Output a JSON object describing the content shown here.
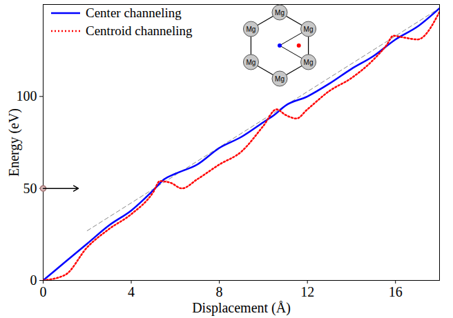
{
  "chart_data": {
    "type": "line",
    "x_label": "Displacement (Å)",
    "y_label": "Energy (eV)",
    "xlim": [
      0,
      18
    ],
    "ylim": [
      0,
      150
    ],
    "xticks": [
      0,
      4,
      8,
      12,
      16
    ],
    "yticks": [
      0,
      50,
      100
    ],
    "legend": "upper left",
    "series": [
      {
        "name": "Center channeling",
        "color": "#0000ff",
        "line_style": "solid",
        "x": [
          0,
          1,
          2,
          3,
          4,
          5,
          5.5,
          6,
          7,
          8,
          9,
          10,
          10.5,
          11,
          12,
          13,
          14,
          15,
          16,
          17,
          18
        ],
        "values": [
          0,
          10,
          20,
          30,
          38,
          49,
          55,
          58,
          63,
          72,
          78,
          86,
          90,
          95,
          100,
          107,
          115,
          122,
          131,
          138,
          148
        ]
      },
      {
        "name": "Centroid channeling",
        "color": "#ff0000",
        "line_style": "dotted",
        "x": [
          0,
          1,
          2,
          3,
          4,
          5,
          5.3,
          5.8,
          6.3,
          7,
          8,
          9,
          10,
          10.6,
          11,
          11.5,
          12,
          13,
          14,
          15,
          15.6,
          15.9,
          16.4,
          17,
          18
        ],
        "values": [
          0,
          3,
          18,
          28,
          36,
          48,
          54,
          53,
          50,
          55,
          63,
          70,
          84,
          93,
          90,
          88,
          93,
          103,
          110,
          120,
          128,
          133,
          132,
          131,
          146
        ]
      }
    ],
    "reference_line": {
      "x": [
        2,
        18
      ],
      "values": [
        27,
        148
      ],
      "color": "#888888",
      "line_style": "dashed"
    },
    "arrow": {
      "x": [
        0,
        1.6
      ],
      "y": 50
    },
    "inset_labels": [
      "Mg",
      "Mg",
      "Mg",
      "Mg",
      "Mg",
      "Mg"
    ]
  }
}
